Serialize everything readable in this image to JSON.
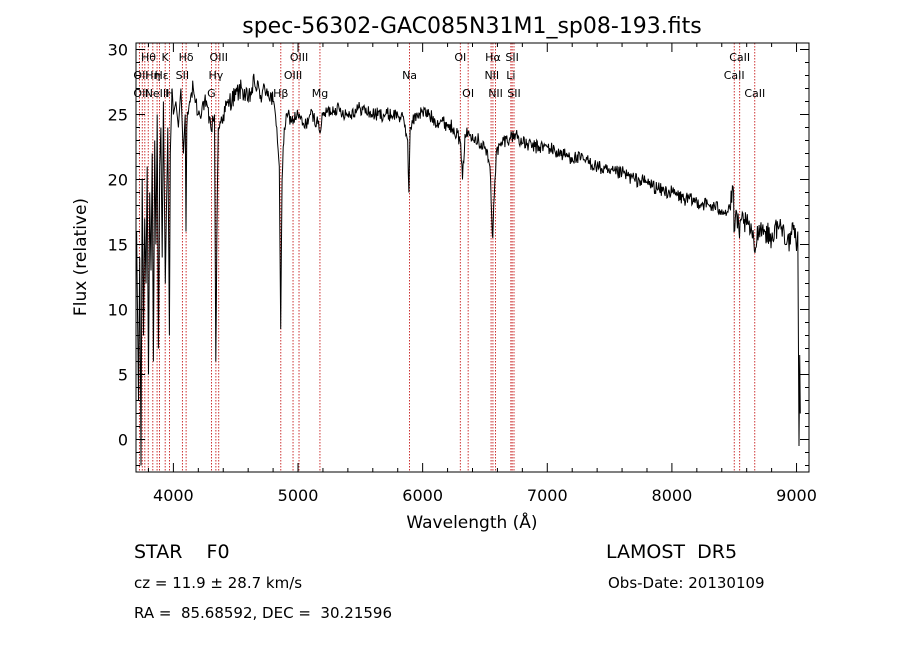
{
  "chart_data": {
    "type": "line",
    "title": "spec-56302-GAC085N31M1_sp08-193.fits",
    "xlabel": "Wavelength (Å)",
    "ylabel": "Flux (relative)",
    "xlim": [
      3700,
      9100
    ],
    "ylim": [
      -2.5,
      30.5
    ],
    "x_ticks": [
      4000,
      5000,
      6000,
      7000,
      8000,
      9000
    ],
    "y_ticks": [
      0,
      5,
      10,
      15,
      20,
      25,
      30
    ],
    "grid": false,
    "series": [
      {
        "color": "#000000",
        "points": [
          [
            3705,
            16
          ],
          [
            3720,
            3
          ],
          [
            3730,
            14
          ],
          [
            3740,
            -2
          ],
          [
            3750,
            20
          ],
          [
            3760,
            8
          ],
          [
            3770,
            17
          ],
          [
            3780,
            12
          ],
          [
            3790,
            21
          ],
          [
            3800,
            5
          ],
          [
            3810,
            19
          ],
          [
            3820,
            13
          ],
          [
            3830,
            22
          ],
          [
            3840,
            6
          ],
          [
            3850,
            23
          ],
          [
            3860,
            15
          ],
          [
            3870,
            25
          ],
          [
            3880,
            7
          ],
          [
            3890,
            21
          ],
          [
            3900,
            24
          ],
          [
            3910,
            14
          ],
          [
            3920,
            26
          ],
          [
            3935,
            12
          ],
          [
            3945,
            18
          ],
          [
            3955,
            24
          ],
          [
            3968,
            8
          ],
          [
            3975,
            22
          ],
          [
            3990,
            27
          ],
          [
            4000,
            25
          ],
          [
            4020,
            26
          ],
          [
            4040,
            24
          ],
          [
            4060,
            27
          ],
          [
            4080,
            22
          ],
          [
            4095,
            25
          ],
          [
            4101,
            16
          ],
          [
            4108,
            24
          ],
          [
            4130,
            26
          ],
          [
            4160,
            27
          ],
          [
            4200,
            25
          ],
          [
            4250,
            26
          ],
          [
            4300,
            24
          ],
          [
            4330,
            25
          ],
          [
            4340,
            6
          ],
          [
            4348,
            15
          ],
          [
            4360,
            24
          ],
          [
            4400,
            25
          ],
          [
            4450,
            26
          ],
          [
            4500,
            26.5
          ],
          [
            4550,
            27
          ],
          [
            4600,
            26
          ],
          [
            4650,
            27.5
          ],
          [
            4700,
            26.5
          ],
          [
            4750,
            27
          ],
          [
            4800,
            26
          ],
          [
            4830,
            24
          ],
          [
            4850,
            21
          ],
          [
            4861,
            8.5
          ],
          [
            4872,
            20
          ],
          [
            4890,
            24
          ],
          [
            4920,
            25
          ],
          [
            4950,
            24.5
          ],
          [
            5000,
            25
          ],
          [
            5050,
            24
          ],
          [
            5100,
            25
          ],
          [
            5150,
            24.5
          ],
          [
            5183,
            23.8
          ],
          [
            5200,
            25
          ],
          [
            5300,
            25.5
          ],
          [
            5400,
            25
          ],
          [
            5500,
            25.5
          ],
          [
            5600,
            25
          ],
          [
            5700,
            25
          ],
          [
            5800,
            25
          ],
          [
            5850,
            24.5
          ],
          [
            5880,
            23
          ],
          [
            5890,
            19
          ],
          [
            5900,
            24
          ],
          [
            5950,
            25
          ],
          [
            6000,
            25.2
          ],
          [
            6050,
            25
          ],
          [
            6100,
            24.5
          ],
          [
            6150,
            24.5
          ],
          [
            6200,
            24.2
          ],
          [
            6250,
            24
          ],
          [
            6300,
            23
          ],
          [
            6320,
            20
          ],
          [
            6340,
            23.5
          ],
          [
            6400,
            23.5
          ],
          [
            6450,
            23
          ],
          [
            6500,
            22.5
          ],
          [
            6540,
            21
          ],
          [
            6555,
            17
          ],
          [
            6563,
            15.5
          ],
          [
            6570,
            18
          ],
          [
            6590,
            22
          ],
          [
            6650,
            23
          ],
          [
            6700,
            23.2
          ],
          [
            6750,
            23.5
          ],
          [
            6800,
            22.8
          ],
          [
            6900,
            22.5
          ],
          [
            7000,
            22.5
          ],
          [
            7100,
            22
          ],
          [
            7200,
            21.7
          ],
          [
            7300,
            21.5
          ],
          [
            7400,
            21
          ],
          [
            7500,
            20.5
          ],
          [
            7600,
            20.5
          ],
          [
            7700,
            20
          ],
          [
            7800,
            19.8
          ],
          [
            7900,
            19.2
          ],
          [
            8000,
            19
          ],
          [
            8100,
            18.5
          ],
          [
            8200,
            18.3
          ],
          [
            8300,
            18
          ],
          [
            8400,
            17.7
          ],
          [
            8450,
            17.5
          ],
          [
            8495,
            19
          ],
          [
            8498,
            16
          ],
          [
            8520,
            17.5
          ],
          [
            8542,
            15.5
          ],
          [
            8560,
            17
          ],
          [
            8600,
            16.5
          ],
          [
            8640,
            16
          ],
          [
            8662,
            14.5
          ],
          [
            8700,
            16.5
          ],
          [
            8750,
            16
          ],
          [
            8800,
            15.5
          ],
          [
            8850,
            16.5
          ],
          [
            8900,
            16
          ],
          [
            8950,
            15
          ],
          [
            8980,
            16.5
          ],
          [
            9000,
            14.5
          ],
          [
            9010,
            16
          ],
          [
            9020,
            -0.5
          ],
          [
            9025,
            6.5
          ],
          [
            9030,
            2
          ]
        ]
      }
    ],
    "lines": [
      {
        "x": 3727,
        "labels": [
          "OII"
        ]
      },
      {
        "x": 3750,
        "labels": []
      },
      {
        "x": 3771,
        "labels": []
      },
      {
        "x": 3798,
        "labels": [
          "Hθ"
        ]
      },
      {
        "x": 3835,
        "labels": [
          "Hη"
        ]
      },
      {
        "x": 3869,
        "labels": [
          "NeIII"
        ]
      },
      {
        "x": 3889,
        "labels": [
          "Hζ"
        ]
      },
      {
        "x": 3934,
        "labels": [
          "K"
        ]
      },
      {
        "x": 3968,
        "labels": [
          "H"
        ]
      },
      {
        "x": 4072,
        "labels": [
          "SII"
        ]
      },
      {
        "x": 4102,
        "labels": [
          "Hδ"
        ]
      },
      {
        "x": 4305,
        "labels": [
          "G"
        ]
      },
      {
        "x": 4341,
        "labels": [
          "Hγ"
        ]
      },
      {
        "x": 4364,
        "labels": [
          "OIII"
        ]
      },
      {
        "x": 4862,
        "labels": [
          "Hβ"
        ]
      },
      {
        "x": 4960,
        "labels": [
          "OIII"
        ]
      },
      {
        "x": 5008,
        "labels": [
          "OIII"
        ]
      },
      {
        "x": 5176,
        "labels": [
          "Mg"
        ]
      },
      {
        "x": 5895,
        "labels": [
          "Na"
        ]
      },
      {
        "x": 6302,
        "labels": [
          "OI"
        ]
      },
      {
        "x": 6365,
        "labels": [
          "OI"
        ]
      },
      {
        "x": 6549,
        "labels": [
          "NII"
        ]
      },
      {
        "x": 6564,
        "labels": [
          "Hα"
        ]
      },
      {
        "x": 6585,
        "labels": [
          "NII"
        ]
      },
      {
        "x": 6708,
        "labels": [
          "Li"
        ]
      },
      {
        "x": 6718,
        "labels": [
          "SII"
        ]
      },
      {
        "x": 6733,
        "labels": [
          "SII"
        ]
      },
      {
        "x": 8500,
        "labels": [
          "CaII"
        ]
      },
      {
        "x": 8544,
        "labels": [
          "CaII"
        ]
      },
      {
        "x": 8665,
        "labels": [
          "CaII"
        ]
      }
    ],
    "line_labels": [
      {
        "text": "Hθ",
        "x": 3800,
        "row": 1
      },
      {
        "text": "K",
        "x": 3934,
        "row": 1
      },
      {
        "text": "Hδ",
        "x": 4102,
        "row": 1
      },
      {
        "text": "OIII",
        "x": 4364,
        "row": 1
      },
      {
        "text": "OIII",
        "x": 5008,
        "row": 1
      },
      {
        "text": "OI",
        "x": 6302,
        "row": 1
      },
      {
        "text": "Hα",
        "x": 6564,
        "row": 1
      },
      {
        "text": "SII",
        "x": 6718,
        "row": 1
      },
      {
        "text": "CaII",
        "x": 8544,
        "row": 1
      },
      {
        "text": "OII",
        "x": 3740,
        "row": 2
      },
      {
        "text": "Hη",
        "x": 3835,
        "row": 2
      },
      {
        "text": "Hε",
        "x": 3905,
        "row": 2
      },
      {
        "text": "SII",
        "x": 4072,
        "row": 2
      },
      {
        "text": "Hγ",
        "x": 4341,
        "row": 2
      },
      {
        "text": "OIII",
        "x": 4960,
        "row": 2
      },
      {
        "text": "Na",
        "x": 5895,
        "row": 2
      },
      {
        "text": "NII",
        "x": 6555,
        "row": 2
      },
      {
        "text": "Li",
        "x": 6708,
        "row": 2
      },
      {
        "text": "CaII",
        "x": 8500,
        "row": 2
      },
      {
        "text": "OII",
        "x": 3740,
        "row": 3
      },
      {
        "text": "NeIII",
        "x": 3869,
        "row": 3
      },
      {
        "text": "H",
        "x": 3968,
        "row": 3
      },
      {
        "text": "G",
        "x": 4305,
        "row": 3
      },
      {
        "text": "Hβ",
        "x": 4862,
        "row": 3
      },
      {
        "text": "Mg",
        "x": 5176,
        "row": 3
      },
      {
        "text": "OI",
        "x": 6365,
        "row": 3
      },
      {
        "text": "NII",
        "x": 6585,
        "row": 3
      },
      {
        "text": "SII",
        "x": 6733,
        "row": 3
      },
      {
        "text": "CaII",
        "x": 8665,
        "row": 3
      }
    ],
    "line_color": "#c00000"
  },
  "info": {
    "classification": "STAR    F0",
    "survey": "LAMOST  DR5",
    "cz": "cz = 11.9 ± 28.7 km/s",
    "obs_date": "Obs-Date: 20130109",
    "coords": "RA =  85.68592, DEC =  30.21596"
  }
}
